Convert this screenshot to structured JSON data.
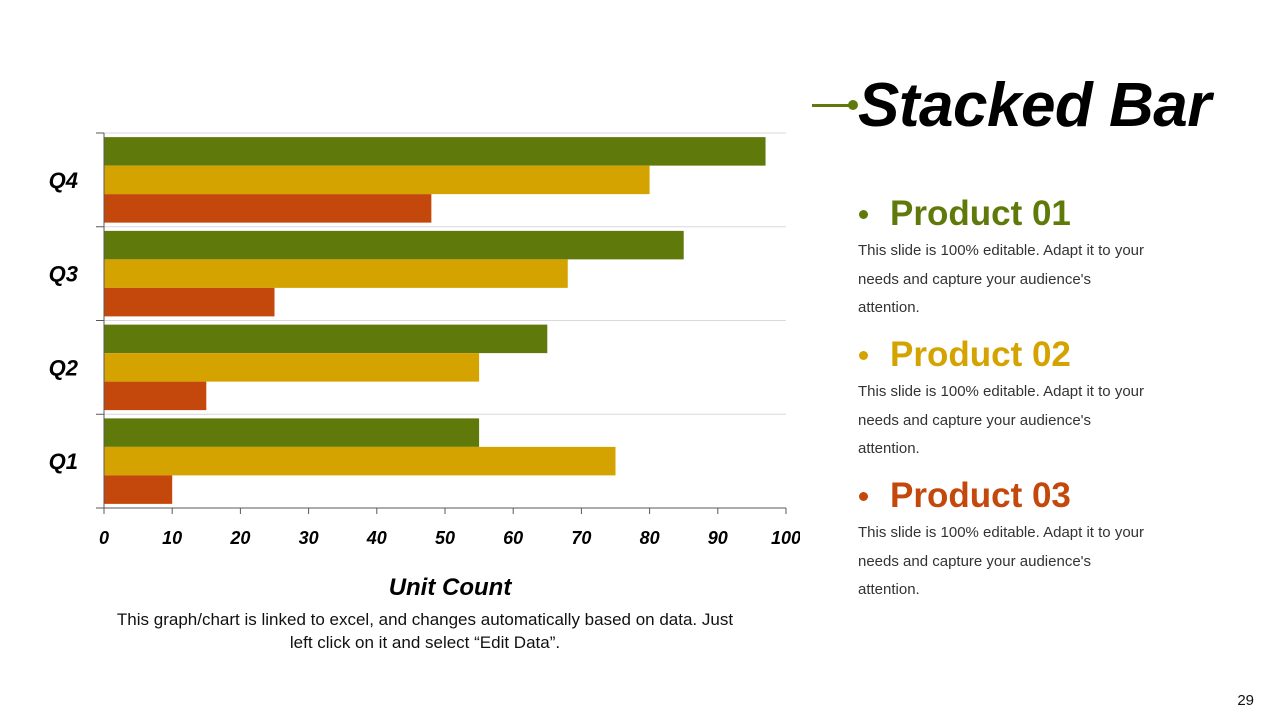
{
  "slide": {
    "title": "Stacked Bar",
    "page_number": "29",
    "chart_note": "This graph/chart is linked to excel, and changes automatically based on data. Just left click on it and select “Edit Data”."
  },
  "colors": {
    "product01": "#5f7a0a",
    "product02": "#d4a300",
    "product03": "#c4470b",
    "accent": "#5f7a0a"
  },
  "products": [
    {
      "name": "Product 01",
      "desc": "This slide is 100% editable. Adapt it to your needs and capture your audience's attention."
    },
    {
      "name": "Product 02",
      "desc": "This slide is 100% editable. Adapt it to your needs and capture your audience's attention."
    },
    {
      "name": "Product 03",
      "desc": "This slide is 100% editable. Adapt it to your needs and capture your audience's attention."
    }
  ],
  "chart_data": {
    "type": "bar",
    "orientation": "horizontal",
    "categories": [
      "Q1",
      "Q2",
      "Q3",
      "Q4"
    ],
    "series": [
      {
        "name": "Product 01",
        "values": [
          55,
          65,
          85,
          97
        ]
      },
      {
        "name": "Product 02",
        "values": [
          75,
          55,
          68,
          80
        ]
      },
      {
        "name": "Product 03",
        "values": [
          10,
          15,
          25,
          48
        ]
      }
    ],
    "title": "Stacked Bar",
    "xlabel": "Unit Count",
    "ylabel": "",
    "xlim": [
      0,
      100
    ],
    "xticks": [
      0,
      10,
      20,
      30,
      40,
      50,
      60,
      70,
      80,
      90,
      100
    ],
    "grid": true,
    "legend": "right"
  }
}
